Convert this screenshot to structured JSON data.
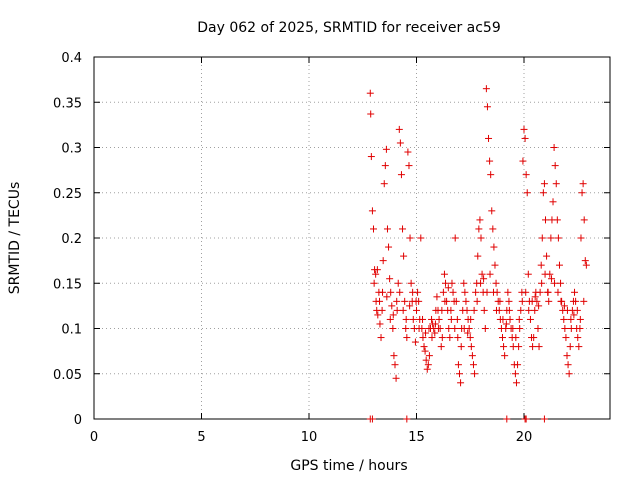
{
  "chart_data": {
    "type": "scatter",
    "title": "Day 062 of 2025, SRMTID for receiver ac59",
    "xlabel": "GPS time / hours",
    "ylabel": "SRMTID / TECUs",
    "xlim": [
      0,
      24
    ],
    "ylim": [
      0,
      0.4
    ],
    "xticks": [
      "0",
      "5",
      "10",
      "15",
      "20"
    ],
    "yticks": [
      "0",
      "0.05",
      "0.1",
      "0.15",
      "0.2",
      "0.25",
      "0.3",
      "0.35",
      "0.4"
    ],
    "grid": true,
    "marker": "+",
    "color": "#e00000",
    "series": [
      {
        "name": "ac59",
        "points": [
          [
            12.85,
            0.36
          ],
          [
            12.87,
            0.337
          ],
          [
            12.9,
            0.29
          ],
          [
            12.95,
            0.23
          ],
          [
            13.0,
            0.21
          ],
          [
            13.05,
            0.165
          ],
          [
            13.1,
            0.16
          ],
          [
            13.12,
            0.13
          ],
          [
            13.15,
            0.12
          ],
          [
            13.2,
            0.115
          ],
          [
            13.25,
            0.14
          ],
          [
            13.3,
            0.105
          ],
          [
            13.35,
            0.09
          ],
          [
            13.4,
            0.12
          ],
          [
            13.45,
            0.175
          ],
          [
            13.5,
            0.26
          ],
          [
            13.55,
            0.28
          ],
          [
            13.6,
            0.298
          ],
          [
            13.65,
            0.21
          ],
          [
            13.7,
            0.19
          ],
          [
            13.75,
            0.155
          ],
          [
            13.8,
            0.14
          ],
          [
            13.85,
            0.125
          ],
          [
            13.9,
            0.1
          ],
          [
            13.95,
            0.07
          ],
          [
            14.0,
            0.06
          ],
          [
            14.05,
            0.045
          ],
          [
            14.1,
            0.12
          ],
          [
            14.15,
            0.15
          ],
          [
            14.2,
            0.32
          ],
          [
            14.25,
            0.305
          ],
          [
            14.3,
            0.27
          ],
          [
            14.35,
            0.21
          ],
          [
            14.4,
            0.18
          ],
          [
            14.45,
            0.13
          ],
          [
            14.5,
            0.1
          ],
          [
            14.55,
            0.09
          ],
          [
            14.6,
            0.295
          ],
          [
            14.65,
            0.28
          ],
          [
            14.7,
            0.2
          ],
          [
            14.75,
            0.15
          ],
          [
            14.8,
            0.13
          ],
          [
            14.85,
            0.11
          ],
          [
            14.9,
            0.1
          ],
          [
            14.95,
            0.085
          ],
          [
            15.0,
            0.12
          ],
          [
            15.05,
            0.14
          ],
          [
            15.1,
            0.13
          ],
          [
            15.15,
            0.11
          ],
          [
            15.2,
            0.2
          ],
          [
            15.25,
            0.1
          ],
          [
            15.3,
            0.09
          ],
          [
            15.35,
            0.08
          ],
          [
            15.4,
            0.075
          ],
          [
            15.45,
            0.065
          ],
          [
            15.5,
            0.055
          ],
          [
            15.55,
            0.06
          ],
          [
            15.6,
            0.07
          ],
          [
            15.65,
            0.1
          ],
          [
            15.7,
            0.11
          ],
          [
            15.75,
            0.105
          ],
          [
            15.8,
            0.1
          ],
          [
            15.85,
            0.095
          ],
          [
            15.9,
            0.12
          ],
          [
            15.95,
            0.135
          ],
          [
            16.0,
            0.12
          ],
          [
            16.05,
            0.11
          ],
          [
            16.1,
            0.1
          ],
          [
            16.15,
            0.08
          ],
          [
            16.2,
            0.09
          ],
          [
            16.25,
            0.14
          ],
          [
            16.3,
            0.16
          ],
          [
            16.35,
            0.15
          ],
          [
            16.4,
            0.13
          ],
          [
            16.45,
            0.12
          ],
          [
            16.5,
            0.1
          ],
          [
            16.55,
            0.09
          ],
          [
            16.6,
            0.12
          ],
          [
            16.65,
            0.15
          ],
          [
            16.7,
            0.14
          ],
          [
            16.75,
            0.13
          ],
          [
            16.8,
            0.2
          ],
          [
            16.85,
            0.13
          ],
          [
            16.9,
            0.11
          ],
          [
            16.95,
            0.06
          ],
          [
            17.0,
            0.05
          ],
          [
            17.05,
            0.04
          ],
          [
            17.1,
            0.1
          ],
          [
            17.15,
            0.12
          ],
          [
            17.2,
            0.15
          ],
          [
            17.25,
            0.14
          ],
          [
            17.3,
            0.13
          ],
          [
            17.35,
            0.12
          ],
          [
            17.4,
            0.11
          ],
          [
            17.45,
            0.1
          ],
          [
            17.5,
            0.09
          ],
          [
            17.55,
            0.08
          ],
          [
            17.6,
            0.07
          ],
          [
            17.65,
            0.06
          ],
          [
            17.7,
            0.05
          ],
          [
            17.75,
            0.14
          ],
          [
            17.8,
            0.15
          ],
          [
            17.85,
            0.18
          ],
          [
            17.9,
            0.21
          ],
          [
            17.95,
            0.22
          ],
          [
            18.0,
            0.2
          ],
          [
            18.05,
            0.16
          ],
          [
            18.1,
            0.14
          ],
          [
            18.15,
            0.12
          ],
          [
            18.2,
            0.1
          ],
          [
            18.25,
            0.365
          ],
          [
            18.3,
            0.345
          ],
          [
            18.35,
            0.31
          ],
          [
            18.4,
            0.285
          ],
          [
            18.45,
            0.27
          ],
          [
            18.5,
            0.23
          ],
          [
            18.55,
            0.21
          ],
          [
            18.6,
            0.19
          ],
          [
            18.65,
            0.17
          ],
          [
            18.7,
            0.15
          ],
          [
            18.75,
            0.14
          ],
          [
            18.8,
            0.13
          ],
          [
            18.85,
            0.12
          ],
          [
            18.9,
            0.11
          ],
          [
            18.95,
            0.1
          ],
          [
            19.0,
            0.09
          ],
          [
            19.05,
            0.08
          ],
          [
            19.1,
            0.07
          ],
          [
            19.15,
            0.1
          ],
          [
            19.2,
            0.12
          ],
          [
            19.25,
            0.14
          ],
          [
            19.3,
            0.13
          ],
          [
            19.35,
            0.11
          ],
          [
            19.4,
            0.1
          ],
          [
            19.45,
            0.09
          ],
          [
            19.5,
            0.08
          ],
          [
            19.55,
            0.06
          ],
          [
            19.6,
            0.05
          ],
          [
            19.65,
            0.04
          ],
          [
            19.7,
            0.06
          ],
          [
            19.75,
            0.08
          ],
          [
            19.8,
            0.1
          ],
          [
            19.85,
            0.12
          ],
          [
            19.9,
            0.14
          ],
          [
            19.95,
            0.285
          ],
          [
            20.0,
            0.32
          ],
          [
            20.05,
            0.31
          ],
          [
            20.1,
            0.27
          ],
          [
            20.15,
            0.25
          ],
          [
            20.2,
            0.16
          ],
          [
            20.25,
            0.13
          ],
          [
            20.3,
            0.11
          ],
          [
            20.35,
            0.09
          ],
          [
            20.4,
            0.08
          ],
          [
            20.45,
            0.09
          ],
          [
            20.5,
            0.12
          ],
          [
            20.55,
            0.14
          ],
          [
            20.6,
            0.13
          ],
          [
            20.65,
            0.1
          ],
          [
            20.7,
            0.08
          ],
          [
            20.75,
            0.14
          ],
          [
            20.8,
            0.17
          ],
          [
            20.85,
            0.2
          ],
          [
            20.9,
            0.25
          ],
          [
            20.95,
            0.26
          ],
          [
            21.0,
            0.22
          ],
          [
            21.05,
            0.18
          ],
          [
            21.1,
            0.14
          ],
          [
            21.15,
            0.13
          ],
          [
            21.2,
            0.16
          ],
          [
            21.25,
            0.2
          ],
          [
            21.3,
            0.22
          ],
          [
            21.35,
            0.24
          ],
          [
            21.4,
            0.3
          ],
          [
            21.45,
            0.28
          ],
          [
            21.5,
            0.26
          ],
          [
            21.55,
            0.22
          ],
          [
            21.6,
            0.2
          ],
          [
            21.65,
            0.17
          ],
          [
            21.7,
            0.15
          ],
          [
            21.75,
            0.13
          ],
          [
            21.8,
            0.12
          ],
          [
            21.85,
            0.11
          ],
          [
            21.9,
            0.1
          ],
          [
            21.95,
            0.09
          ],
          [
            22.0,
            0.07
          ],
          [
            22.05,
            0.06
          ],
          [
            22.1,
            0.05
          ],
          [
            22.15,
            0.08
          ],
          [
            22.2,
            0.1
          ],
          [
            22.25,
            0.12
          ],
          [
            22.3,
            0.13
          ],
          [
            22.35,
            0.14
          ],
          [
            22.4,
            0.13
          ],
          [
            22.45,
            0.1
          ],
          [
            22.5,
            0.09
          ],
          [
            22.55,
            0.08
          ],
          [
            22.6,
            0.1
          ],
          [
            22.65,
            0.2
          ],
          [
            22.7,
            0.25
          ],
          [
            22.75,
            0.26
          ],
          [
            22.8,
            0.22
          ],
          [
            22.85,
            0.175
          ],
          [
            22.9,
            0.17
          ],
          [
            13.03,
            0.15
          ],
          [
            13.18,
            0.165
          ],
          [
            13.28,
            0.13
          ],
          [
            13.42,
            0.14
          ],
          [
            13.62,
            0.135
          ],
          [
            13.78,
            0.11
          ],
          [
            13.92,
            0.115
          ],
          [
            14.08,
            0.13
          ],
          [
            14.22,
            0.14
          ],
          [
            14.38,
            0.12
          ],
          [
            14.52,
            0.11
          ],
          [
            14.68,
            0.125
          ],
          [
            14.82,
            0.14
          ],
          [
            14.98,
            0.13
          ],
          [
            15.12,
            0.1
          ],
          [
            15.28,
            0.11
          ],
          [
            15.42,
            0.095
          ],
          [
            15.58,
            0.1
          ],
          [
            15.72,
            0.09
          ],
          [
            15.88,
            0.105
          ],
          [
            16.02,
            0.1
          ],
          [
            16.18,
            0.12
          ],
          [
            16.32,
            0.13
          ],
          [
            16.48,
            0.145
          ],
          [
            16.62,
            0.11
          ],
          [
            16.78,
            0.1
          ],
          [
            16.92,
            0.09
          ],
          [
            17.08,
            0.08
          ],
          [
            17.22,
            0.1
          ],
          [
            17.38,
            0.095
          ],
          [
            17.52,
            0.11
          ],
          [
            17.68,
            0.12
          ],
          [
            17.82,
            0.13
          ],
          [
            17.98,
            0.15
          ],
          [
            18.12,
            0.155
          ],
          [
            18.28,
            0.14
          ],
          [
            18.42,
            0.16
          ],
          [
            18.58,
            0.14
          ],
          [
            18.72,
            0.12
          ],
          [
            18.88,
            0.13
          ],
          [
            19.02,
            0.11
          ],
          [
            19.18,
            0.105
          ],
          [
            19.32,
            0.12
          ],
          [
            19.48,
            0.1
          ],
          [
            19.62,
            0.09
          ],
          [
            19.78,
            0.11
          ],
          [
            19.92,
            0.13
          ],
          [
            20.08,
            0.14
          ],
          [
            20.22,
            0.12
          ],
          [
            20.38,
            0.13
          ],
          [
            20.52,
            0.135
          ],
          [
            20.68,
            0.125
          ],
          [
            20.82,
            0.15
          ],
          [
            20.98,
            0.16
          ],
          [
            21.12,
            0.14
          ],
          [
            21.28,
            0.155
          ],
          [
            21.42,
            0.15
          ],
          [
            21.58,
            0.14
          ],
          [
            21.72,
            0.13
          ],
          [
            21.88,
            0.125
          ],
          [
            22.02,
            0.12
          ],
          [
            22.18,
            0.11
          ],
          [
            22.32,
            0.115
          ],
          [
            22.48,
            0.12
          ],
          [
            22.62,
            0.11
          ],
          [
            22.78,
            0.13
          ],
          [
            12.85,
            0.0
          ],
          [
            12.95,
            0.0
          ],
          [
            14.55,
            0.0
          ],
          [
            19.2,
            0.0
          ],
          [
            20.05,
            0.0
          ],
          [
            20.1,
            0.0
          ],
          [
            20.95,
            0.0
          ]
        ]
      }
    ]
  }
}
